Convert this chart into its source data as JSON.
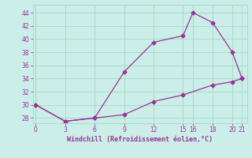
{
  "line1_x": [
    0,
    3,
    6,
    9,
    12,
    15,
    16,
    18,
    20,
    21
  ],
  "line1_y": [
    30,
    27.5,
    28,
    35,
    39.5,
    40.5,
    44,
    42.5,
    38,
    34
  ],
  "line2_x": [
    0,
    3,
    6,
    9,
    12,
    15,
    18,
    20,
    21
  ],
  "line2_y": [
    30,
    27.5,
    28,
    28.5,
    30.5,
    31.5,
    33,
    33.5,
    34
  ],
  "line_color": "#993399",
  "bg_color": "#cceee8",
  "grid_color": "#aaddcc",
  "xlabel": "Windchill (Refroidissement éolien,°C)",
  "xlabel_color": "#993399",
  "ylabel_ticks": [
    28,
    30,
    32,
    34,
    36,
    38,
    40,
    42,
    44
  ],
  "xticks": [
    0,
    3,
    6,
    9,
    12,
    15,
    16,
    18,
    20,
    21
  ],
  "xlim": [
    -0.3,
    21.5
  ],
  "ylim": [
    27.2,
    45.2
  ]
}
